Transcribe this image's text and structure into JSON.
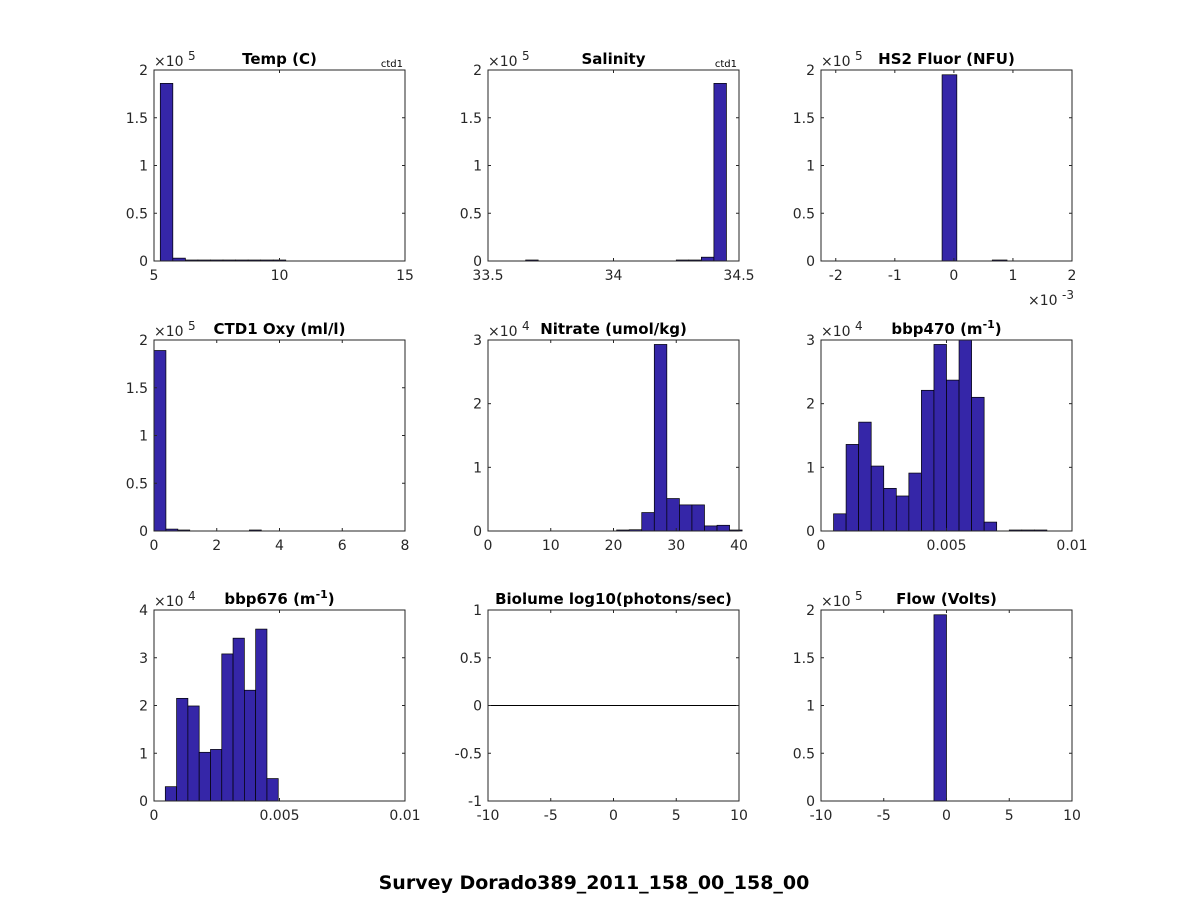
{
  "figure": {
    "suptitle": "Survey Dorado389_2011_158_00_158_00"
  },
  "style": {
    "bar_fill": "#3526a8",
    "bar_edge": "#000000",
    "axis_color": "#262626"
  },
  "chart_data": [
    {
      "type": "bar",
      "title": "Temp (C)",
      "tag": "ctd1",
      "y_exponent": "×10^5",
      "xlim": [
        5,
        15
      ],
      "ylim": [
        0,
        2
      ],
      "xticks": [
        5,
        10,
        15
      ],
      "xtick_labels": [
        "5",
        "10",
        "15"
      ],
      "yticks": [
        0,
        0.5,
        1,
        1.5,
        2
      ],
      "ytick_labels": [
        "0",
        "0.5",
        "1",
        "1.5",
        "2"
      ],
      "bins": [
        [
          5.25,
          5.75,
          1.86
        ],
        [
          5.75,
          6.25,
          0.03
        ],
        [
          6.25,
          6.75,
          0.005
        ],
        [
          6.75,
          7.25,
          0.005
        ],
        [
          7.25,
          7.75,
          0.005
        ],
        [
          7.75,
          8.25,
          0.005
        ],
        [
          8.25,
          8.75,
          0.005
        ],
        [
          8.75,
          9.25,
          0.005
        ],
        [
          9.25,
          9.75,
          0.005
        ],
        [
          9.75,
          10.25,
          0.005
        ]
      ]
    },
    {
      "type": "bar",
      "title": "Salinity",
      "tag": "ctd1",
      "y_exponent": "×10^5",
      "xlim": [
        33.5,
        34.5
      ],
      "ylim": [
        0,
        2
      ],
      "xticks": [
        33.5,
        34,
        34.5
      ],
      "xtick_labels": [
        "33.5",
        "34",
        "34.5"
      ],
      "yticks": [
        0,
        0.5,
        1,
        1.5,
        2
      ],
      "ytick_labels": [
        "0",
        "0.5",
        "1",
        "1.5",
        "2"
      ],
      "bins": [
        [
          33.65,
          33.7,
          0.005
        ],
        [
          34.25,
          34.3,
          0.005
        ],
        [
          34.3,
          34.35,
          0.005
        ],
        [
          34.35,
          34.4,
          0.04
        ],
        [
          34.4,
          34.45,
          1.86
        ]
      ]
    },
    {
      "type": "bar",
      "title": "HS2 Fluor (NFU)",
      "y_exponent": "×10^5",
      "x_exponent": "×10^-3",
      "xlim": [
        -2.25,
        2.0
      ],
      "ylim": [
        0,
        2
      ],
      "xticks": [
        -2,
        -1,
        0,
        1,
        2
      ],
      "xtick_labels": [
        "-2",
        "-1",
        "0",
        "1",
        "2"
      ],
      "yticks": [
        0,
        0.5,
        1,
        1.5,
        2
      ],
      "ytick_labels": [
        "0",
        "0.5",
        "1",
        "1.5",
        "2"
      ],
      "bins": [
        [
          -0.2,
          0.05,
          1.95
        ],
        [
          0.65,
          0.9,
          0.005
        ]
      ]
    },
    {
      "type": "bar",
      "title": "CTD1 Oxy (ml/l)",
      "y_exponent": "×10^5",
      "xlim": [
        0,
        8
      ],
      "ylim": [
        0,
        2
      ],
      "xticks": [
        0,
        2,
        4,
        6,
        8
      ],
      "xtick_labels": [
        "0",
        "2",
        "4",
        "6",
        "8"
      ],
      "yticks": [
        0,
        0.5,
        1,
        1.5,
        2
      ],
      "ytick_labels": [
        "0",
        "0.5",
        "1",
        "1.5",
        "2"
      ],
      "bins": [
        [
          0,
          0.38,
          1.89
        ],
        [
          0.38,
          0.76,
          0.02
        ],
        [
          0.76,
          1.14,
          0.01
        ],
        [
          3.04,
          3.42,
          0.01
        ]
      ]
    },
    {
      "type": "bar",
      "title": "Nitrate (umol/kg)",
      "y_exponent": "×10^4",
      "xlim": [
        0,
        40
      ],
      "ylim": [
        0,
        3
      ],
      "xticks": [
        0,
        10,
        20,
        30,
        40
      ],
      "xtick_labels": [
        "0",
        "10",
        "20",
        "30",
        "40"
      ],
      "yticks": [
        0,
        1,
        2,
        3
      ],
      "ytick_labels": [
        "0",
        "1",
        "2",
        "3"
      ],
      "bins": [
        [
          20.5,
          22.5,
          0.005
        ],
        [
          22.5,
          24.5,
          0.02
        ],
        [
          24.5,
          26.5,
          0.29
        ],
        [
          26.5,
          28.5,
          2.93
        ],
        [
          28.5,
          30.5,
          0.51
        ],
        [
          30.5,
          32.5,
          0.41
        ],
        [
          32.5,
          34.5,
          0.41
        ],
        [
          34.5,
          36.5,
          0.08
        ],
        [
          36.5,
          38.5,
          0.09
        ],
        [
          38.5,
          40.5,
          0.01
        ]
      ]
    },
    {
      "type": "bar",
      "title": "bbp470 (m",
      "title_sup": "-1",
      "title_end": ")",
      "y_exponent": "×10^4",
      "xlim": [
        0,
        0.01
      ],
      "ylim": [
        0,
        3
      ],
      "xticks": [
        0,
        0.005,
        0.01
      ],
      "xtick_labels": [
        "0",
        "0.005",
        "0.01"
      ],
      "yticks": [
        0,
        1,
        2,
        3
      ],
      "ytick_labels": [
        "0",
        "1",
        "2",
        "3"
      ],
      "bins": [
        [
          0.0005,
          0.001,
          0.27
        ],
        [
          0.001,
          0.0015,
          1.36
        ],
        [
          0.0015,
          0.002,
          1.71
        ],
        [
          0.002,
          0.0025,
          1.02
        ],
        [
          0.0025,
          0.003,
          0.67
        ],
        [
          0.003,
          0.0035,
          0.55
        ],
        [
          0.0035,
          0.004,
          0.91
        ],
        [
          0.004,
          0.0045,
          2.21
        ],
        [
          0.0045,
          0.005,
          2.93
        ],
        [
          0.005,
          0.0055,
          2.37
        ],
        [
          0.0055,
          0.006,
          3.0
        ],
        [
          0.006,
          0.0065,
          2.1
        ],
        [
          0.0065,
          0.007,
          0.14
        ],
        [
          0.0075,
          0.008,
          0.005
        ],
        [
          0.008,
          0.0085,
          0.005
        ],
        [
          0.0085,
          0.009,
          0.01
        ]
      ]
    },
    {
      "type": "bar",
      "title": "bbp676 (m",
      "title_sup": "-1",
      "title_end": ")",
      "y_exponent": "×10^4",
      "xlim": [
        0,
        0.01
      ],
      "ylim": [
        0,
        4
      ],
      "xticks": [
        0,
        0.005,
        0.01
      ],
      "xtick_labels": [
        "0",
        "0.005",
        "0.01"
      ],
      "yticks": [
        0,
        1,
        2,
        3,
        4
      ],
      "ytick_labels": [
        "0",
        "1",
        "2",
        "3",
        "4"
      ],
      "bins": [
        [
          0.00045,
          0.0009,
          0.3
        ],
        [
          0.0009,
          0.00135,
          2.15
        ],
        [
          0.00135,
          0.0018,
          1.99
        ],
        [
          0.0018,
          0.00225,
          1.02
        ],
        [
          0.00225,
          0.0027,
          1.08
        ],
        [
          0.0027,
          0.00315,
          3.08
        ],
        [
          0.00315,
          0.0036,
          3.41
        ],
        [
          0.0036,
          0.00405,
          2.32
        ],
        [
          0.00405,
          0.0045,
          3.6
        ],
        [
          0.0045,
          0.00495,
          0.47
        ]
      ]
    },
    {
      "type": "line",
      "title": "Biolume log10(photons/sec)",
      "xlim": [
        -10,
        10
      ],
      "ylim": [
        -1,
        1
      ],
      "xticks": [
        -10,
        -5,
        0,
        5,
        10
      ],
      "xtick_labels": [
        "-10",
        "-5",
        "0",
        "5",
        "10"
      ],
      "yticks": [
        -1,
        -0.5,
        0,
        0.5,
        1
      ],
      "ytick_labels": [
        "-1",
        "-0.5",
        "0",
        "0.5",
        "1"
      ],
      "x": [
        -10,
        10
      ],
      "y": [
        0,
        0
      ]
    },
    {
      "type": "bar",
      "title": "Flow (Volts)",
      "y_exponent": "×10^5",
      "xlim": [
        -10,
        10
      ],
      "ylim": [
        0,
        2
      ],
      "xticks": [
        -10,
        -5,
        0,
        5,
        10
      ],
      "xtick_labels": [
        "-10",
        "-5",
        "0",
        "5",
        "10"
      ],
      "yticks": [
        0,
        0.5,
        1,
        1.5,
        2
      ],
      "ytick_labels": [
        "0",
        "0.5",
        "1",
        "1.5",
        "2"
      ],
      "bins": [
        [
          -1.0,
          0.0,
          1.95
        ]
      ]
    }
  ]
}
